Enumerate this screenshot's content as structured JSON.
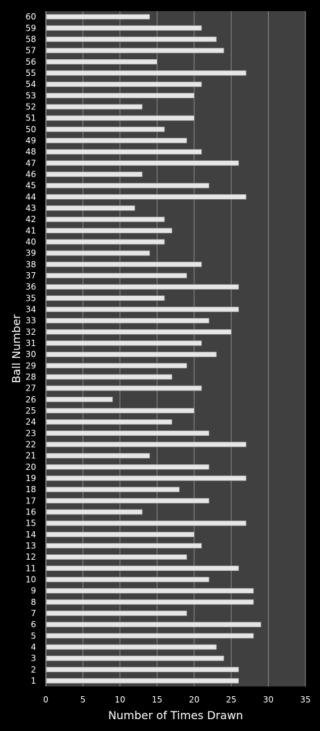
{
  "chart_data": {
    "type": "bar",
    "orientation": "horizontal",
    "title": "",
    "xlabel": "Number of Times Drawn",
    "ylabel": "Ball Number",
    "xlim": [
      0,
      35
    ],
    "xticks": [
      0,
      5,
      10,
      15,
      20,
      25,
      30,
      35
    ],
    "grid": "vertical major gridlines",
    "legend": "none",
    "colors": {
      "background": "#000000",
      "plot_area": "#404040",
      "bar": "#e6e6e6",
      "gridline": "#8c8c8c",
      "text": "#ffffff"
    },
    "categories": [
      "1",
      "2",
      "3",
      "4",
      "5",
      "6",
      "7",
      "8",
      "9",
      "10",
      "11",
      "12",
      "13",
      "14",
      "15",
      "16",
      "17",
      "18",
      "19",
      "20",
      "21",
      "22",
      "23",
      "24",
      "25",
      "26",
      "27",
      "28",
      "29",
      "30",
      "31",
      "32",
      "33",
      "34",
      "35",
      "36",
      "37",
      "38",
      "39",
      "40",
      "41",
      "42",
      "43",
      "44",
      "45",
      "46",
      "47",
      "48",
      "49",
      "50",
      "51",
      "52",
      "53",
      "54",
      "55",
      "56",
      "57",
      "58",
      "59",
      "60"
    ],
    "values": [
      26,
      26,
      24,
      23,
      28,
      29,
      19,
      28,
      28,
      22,
      26,
      19,
      21,
      20,
      27,
      13,
      22,
      18,
      27,
      22,
      14,
      27,
      22,
      17,
      20,
      9,
      21,
      17,
      19,
      23,
      21,
      25,
      22,
      26,
      16,
      26,
      19,
      21,
      14,
      16,
      17,
      16,
      12,
      27,
      22,
      13,
      26,
      21,
      19,
      16,
      20,
      13,
      20,
      21,
      27,
      15,
      24,
      23,
      21,
      14
    ]
  }
}
